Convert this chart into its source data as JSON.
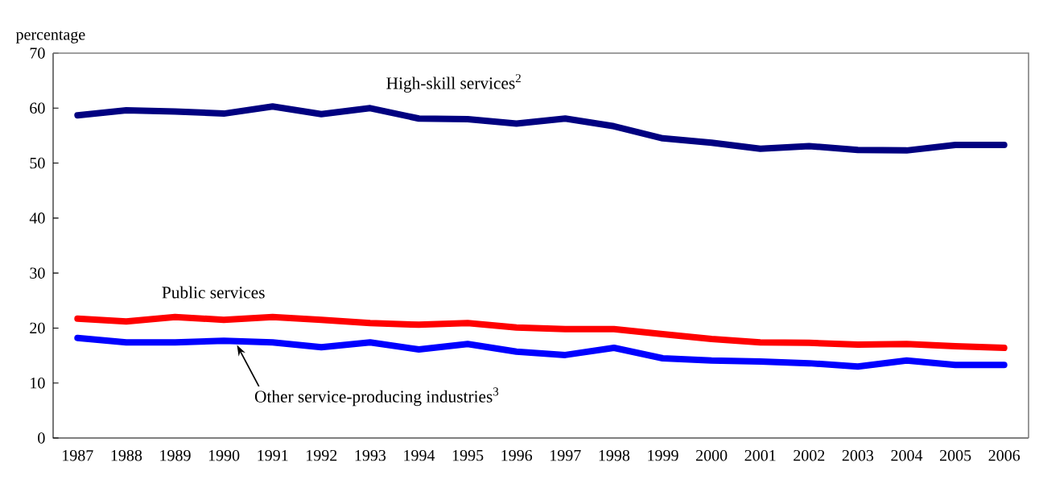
{
  "chart_data": {
    "type": "line",
    "ylabel": "percentage",
    "categories": [
      "1987",
      "1988",
      "1989",
      "1990",
      "1991",
      "1992",
      "1993",
      "1994",
      "1995",
      "1996",
      "1997",
      "1998",
      "1999",
      "2000",
      "2001",
      "2002",
      "2003",
      "2004",
      "2005",
      "2006"
    ],
    "ylim": [
      0,
      70
    ],
    "yticks": [
      0,
      10,
      20,
      30,
      40,
      50,
      60,
      70
    ],
    "marker": "none",
    "line_style": "solid",
    "series": [
      {
        "name": "High-skill services$^{2}$",
        "color": "#000080",
        "values": [
          58.7,
          59.6,
          59.4,
          59.0,
          60.3,
          58.9,
          60.0,
          58.1,
          58.0,
          57.2,
          58.1,
          56.7,
          54.5,
          53.7,
          52.6,
          53.1,
          52.4,
          52.3,
          53.3,
          53.3
        ]
      },
      {
        "name": "Public services",
        "color": "#ff0000",
        "values": [
          21.7,
          21.2,
          22.0,
          21.5,
          22.0,
          21.5,
          20.9,
          20.6,
          20.9,
          20.1,
          19.8,
          19.8,
          18.9,
          18.0,
          17.4,
          17.3,
          17.0,
          17.1,
          16.7,
          16.4
        ]
      },
      {
        "name": "Other service-producing industries$^{3}$",
        "color": "#0000ff",
        "values": [
          18.2,
          17.4,
          17.4,
          17.7,
          17.4,
          16.5,
          17.4,
          16.1,
          17.1,
          15.7,
          15.1,
          16.4,
          14.5,
          14.1,
          13.9,
          13.6,
          13.0,
          14.1,
          13.3,
          13.3
        ]
      }
    ]
  }
}
